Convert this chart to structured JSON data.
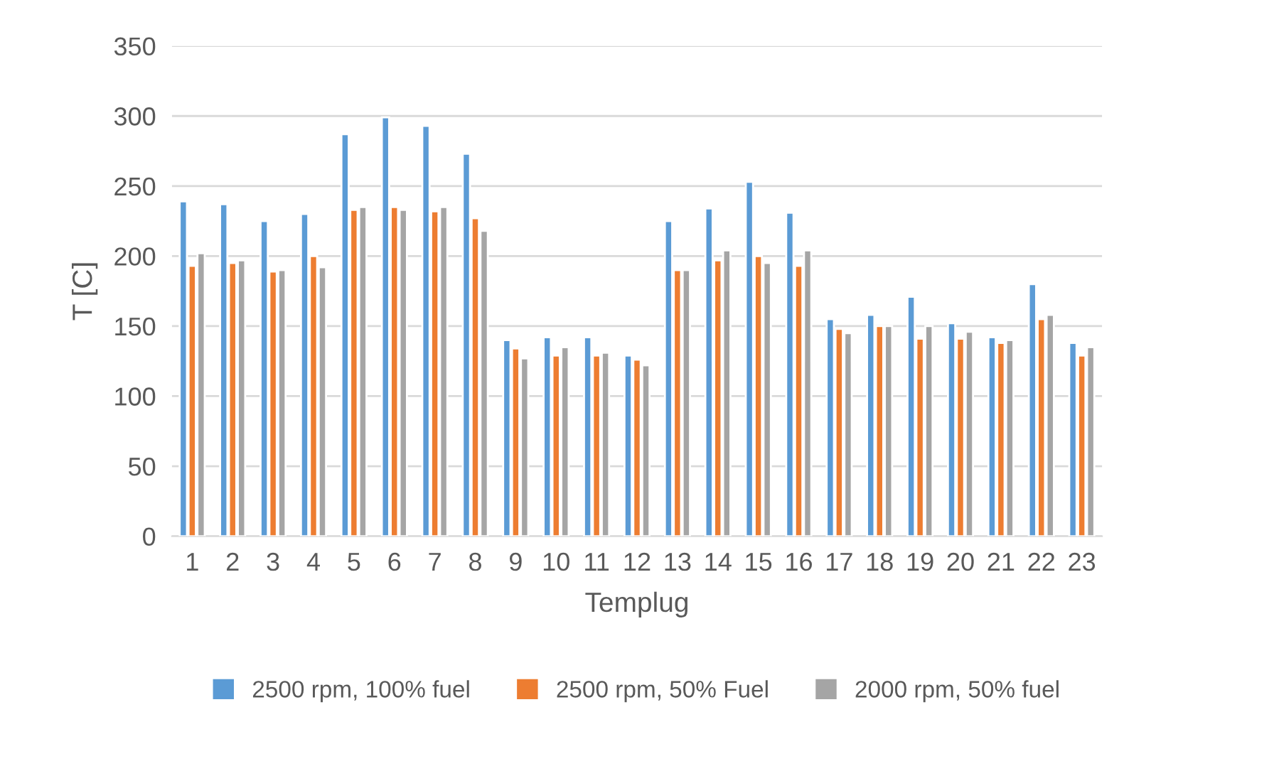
{
  "chart_data": {
    "type": "bar",
    "xlabel": "Templug",
    "ylabel": "T [C]",
    "categories": [
      "1",
      "2",
      "3",
      "4",
      "5",
      "6",
      "7",
      "8",
      "9",
      "10",
      "11",
      "12",
      "13",
      "14",
      "15",
      "16",
      "17",
      "18",
      "19",
      "20",
      "21",
      "22",
      "23"
    ],
    "series": [
      {
        "name": "2500 rpm, 100% fuel",
        "color": "#5b9bd5",
        "values": [
          239,
          237,
          225,
          230,
          287,
          299,
          293,
          273,
          140,
          142,
          142,
          129,
          225,
          234,
          253,
          231,
          155,
          158,
          171,
          152,
          142,
          180,
          138
        ]
      },
      {
        "name": "2500 rpm, 50% Fuel",
        "color": "#ed7d31",
        "values": [
          193,
          195,
          189,
          200,
          233,
          235,
          232,
          227,
          134,
          129,
          129,
          126,
          190,
          197,
          200,
          193,
          148,
          150,
          141,
          141,
          138,
          155,
          129
        ]
      },
      {
        "name": "2000 rpm, 50% fuel",
        "color": "#a5a5a5",
        "values": [
          202,
          197,
          190,
          192,
          235,
          233,
          235,
          218,
          127,
          135,
          131,
          122,
          190,
          204,
          195,
          204,
          145,
          150,
          150,
          146,
          140,
          158,
          135
        ]
      }
    ],
    "ylim": [
      0,
      350
    ],
    "yticks": [
      0,
      50,
      100,
      150,
      200,
      250,
      300,
      350
    ],
    "grid": "y",
    "legend": "bottom"
  }
}
